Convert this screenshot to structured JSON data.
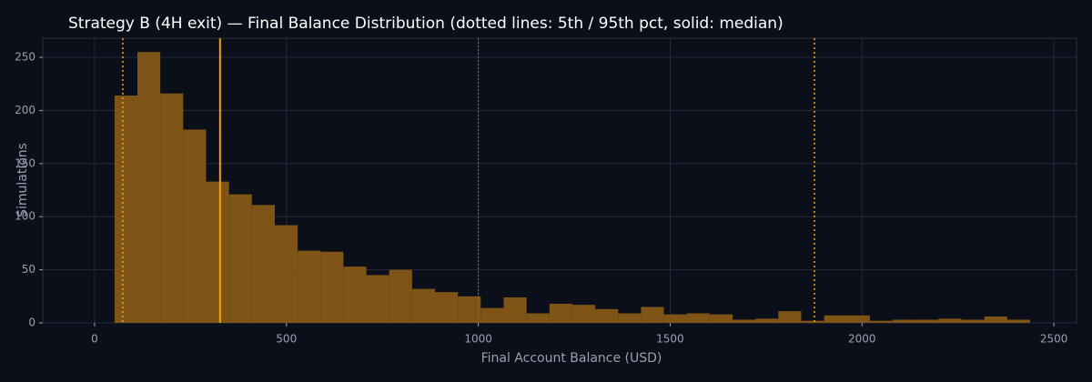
{
  "chart_data": {
    "type": "histogram",
    "title": "Strategy B (4H exit) — Final Balance Distribution (dotted lines: 5th / 95th pct, solid: median)",
    "x_label": "Final Account Balance (USD)",
    "y_label": "Simulations",
    "bins": [
      52,
      111.7,
      171.3,
      231,
      290.6,
      350.3,
      409.9,
      469.6,
      529.2,
      588.9,
      648.5,
      708.2,
      767.8,
      827.5,
      887.1,
      946.8,
      1006.4,
      1066.1,
      1125.7,
      1185.4,
      1245,
      1304.7,
      1364.3,
      1424,
      1483.6,
      1543.3,
      1602.9,
      1662.6,
      1722.2,
      1781.9,
      1841.5,
      1901.2,
      1960.8,
      2020.5,
      2080.1,
      2139.8,
      2199.4,
      2259.1,
      2318.7,
      2378.4,
      2438
    ],
    "counts": [
      214,
      255,
      216,
      182,
      133,
      121,
      111,
      92,
      68,
      67,
      53,
      45,
      50,
      32,
      29,
      25,
      14,
      24,
      9,
      18,
      17,
      13,
      9,
      15,
      8,
      9,
      8,
      3,
      4,
      11,
      2,
      7,
      7,
      2,
      3,
      3,
      4,
      3,
      6,
      3
    ],
    "color": "#7f5417",
    "percentile_5": 73.5,
    "median": 327,
    "percentile_95": 1876,
    "percentile_color": "#f59e0b",
    "reference_x": 1000,
    "reference_color": "#6b7280",
    "xlim": [
      -135,
      2559
    ],
    "ylim": [
      0,
      268
    ],
    "xticks": [
      0,
      500,
      1000,
      1500,
      2000,
      2500
    ],
    "yticks": [
      0,
      50,
      100,
      150,
      200,
      250
    ],
    "grid": true
  }
}
